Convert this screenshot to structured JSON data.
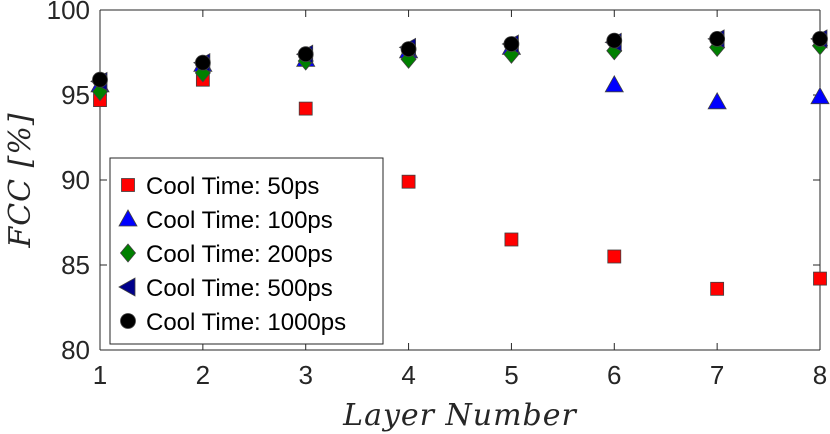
{
  "chart_data": {
    "type": "scatter",
    "xlabel": "Layer Number",
    "ylabel": "FCC [%]",
    "xlim": [
      1,
      8
    ],
    "ylim": [
      80,
      100
    ],
    "xticks": [
      1,
      2,
      3,
      4,
      5,
      6,
      7,
      8
    ],
    "yticks": [
      80,
      85,
      90,
      95,
      100
    ],
    "grid": false,
    "legend_position": "bottom-left",
    "x": [
      1,
      2,
      3,
      4,
      5,
      6,
      7,
      8
    ],
    "series": [
      {
        "name": "Cool Time: 50ps",
        "marker": "square",
        "color": "#ff0000",
        "values": [
          94.7,
          95.9,
          94.2,
          89.9,
          86.5,
          85.5,
          83.6,
          84.2
        ]
      },
      {
        "name": "Cool Time: 100ps",
        "marker": "triangle-up",
        "color": "#0000ff",
        "values": [
          95.6,
          96.8,
          97.1,
          97.6,
          97.8,
          95.6,
          94.6,
          94.9
        ]
      },
      {
        "name": "Cool Time: 200ps",
        "marker": "diamond",
        "color": "#008000",
        "values": [
          95.2,
          96.3,
          97.0,
          97.1,
          97.4,
          97.6,
          97.8,
          97.9
        ]
      },
      {
        "name": "Cool Time: 500ps",
        "marker": "triangle-left",
        "color": "#00008b",
        "values": [
          95.8,
          96.9,
          97.4,
          97.8,
          98.0,
          98.1,
          98.3,
          98.3
        ]
      },
      {
        "name": "Cool Time: 1000ps",
        "marker": "circle",
        "color": "#000000",
        "values": [
          95.9,
          96.9,
          97.4,
          97.7,
          98.0,
          98.2,
          98.3,
          98.3
        ]
      }
    ]
  }
}
